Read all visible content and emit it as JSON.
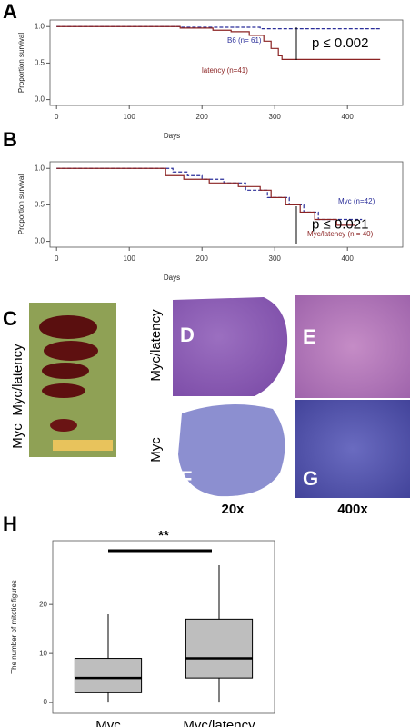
{
  "chart_data": [
    {
      "type": "line",
      "panel": "A",
      "xlabel": "Days",
      "ylabel": "Proportion survival",
      "annotation": "p ≤ 0.002",
      "xlim": [
        -9,
        476
      ],
      "xticks": [
        0,
        100,
        200,
        300,
        400
      ],
      "ylim": [
        -0.08,
        1.09
      ],
      "yticks": [
        {
          "value": 0,
          "label": "0.0"
        },
        {
          "value": 0.5,
          "label": "0.5"
        },
        {
          "value": 1,
          "label": "1.0"
        }
      ],
      "series": [
        {
          "name": "B6 (n= 61)",
          "color": "#2b2f9a",
          "dashed": true,
          "x": [
            0,
            170,
            170,
            280,
            280,
            445
          ],
          "values": [
            1,
            1,
            0.99,
            0.99,
            0.97,
            0.97
          ]
        },
        {
          "name": "latency (n=41)",
          "color": "#8b2323",
          "dashed": false,
          "x": [
            0,
            170,
            170,
            215,
            215,
            240,
            240,
            265,
            265,
            285,
            285,
            295,
            295,
            305,
            305,
            310,
            310,
            445
          ],
          "values": [
            1,
            1,
            0.98,
            0.98,
            0.95,
            0.95,
            0.93,
            0.93,
            0.88,
            0.88,
            0.8,
            0.8,
            0.7,
            0.7,
            0.6,
            0.6,
            0.55,
            0.55
          ]
        }
      ]
    },
    {
      "type": "line",
      "panel": "B",
      "xlabel": "Days",
      "ylabel": "Proportion survival",
      "annotation": "p ≤ 0.021",
      "xlim": [
        -9,
        476
      ],
      "xticks": [
        0,
        100,
        200,
        300,
        400
      ],
      "ylim": [
        -0.08,
        1.09
      ],
      "yticks": [
        {
          "value": 0,
          "label": "0.0"
        },
        {
          "value": 0.5,
          "label": "0.5"
        },
        {
          "value": 1,
          "label": "1.0"
        }
      ],
      "series": [
        {
          "name": "Myc (n=42)",
          "color": "#2b2f9a",
          "dashed": true,
          "x": [
            0,
            160,
            160,
            180,
            180,
            200,
            200,
            230,
            230,
            260,
            260,
            290,
            290,
            320,
            320,
            340,
            340,
            360,
            360,
            420
          ],
          "values": [
            1,
            1,
            0.95,
            0.95,
            0.9,
            0.9,
            0.85,
            0.85,
            0.8,
            0.8,
            0.7,
            0.7,
            0.6,
            0.6,
            0.5,
            0.5,
            0.4,
            0.4,
            0.3,
            0.3
          ]
        },
        {
          "name": "Myc/latency (n = 40)",
          "color": "#8b2323",
          "dashed": false,
          "x": [
            0,
            150,
            150,
            175,
            175,
            210,
            210,
            250,
            250,
            280,
            280,
            295,
            295,
            315,
            315,
            335,
            335,
            355,
            355,
            385,
            385,
            410
          ],
          "values": [
            1,
            1,
            0.9,
            0.9,
            0.85,
            0.85,
            0.8,
            0.8,
            0.75,
            0.75,
            0.7,
            0.7,
            0.6,
            0.6,
            0.5,
            0.5,
            0.4,
            0.4,
            0.3,
            0.3,
            0.22,
            0.22
          ]
        }
      ]
    },
    {
      "type": "box",
      "panel": "H",
      "ylabel": "The number of mitotic figures",
      "annotation": "**",
      "categories": [
        "Myc",
        "Myc/latency"
      ],
      "ylim": [
        -2.2,
        33
      ],
      "yticks": [
        0,
        10,
        20
      ],
      "color": "#bebebe",
      "min": [
        0,
        0
      ],
      "q1": [
        2,
        5
      ],
      "median": [
        5,
        9
      ],
      "q3": [
        9,
        17
      ],
      "max": [
        18,
        28
      ]
    }
  ],
  "figure": {
    "letters": [
      "C",
      "D",
      "E",
      "F",
      "G"
    ],
    "c_labels": [
      "Myc/latency",
      "Myc"
    ],
    "row_labels": [
      "Myc/latency",
      "Myc"
    ],
    "magnifications": [
      "20x",
      "400x"
    ]
  }
}
